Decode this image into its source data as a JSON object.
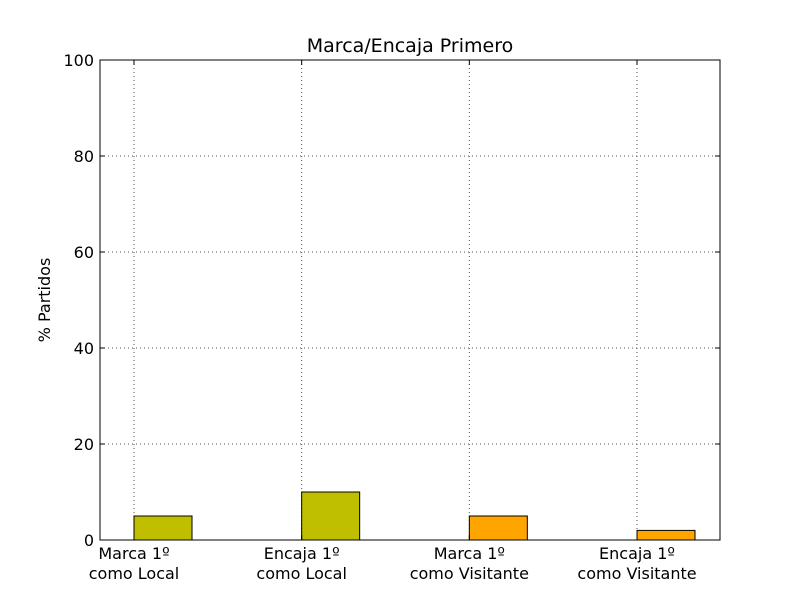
{
  "chart_data": {
    "type": "bar",
    "title": "Marca/Encaja Primero",
    "xlabel": "",
    "ylabel": "% Partidos",
    "ylim": [
      0,
      100
    ],
    "yticks": [
      "0",
      "20",
      "40",
      "60",
      "80",
      "100"
    ],
    "categories": [
      [
        "Marca 1º",
        "como Local"
      ],
      [
        "Encaja 1º",
        "como Local"
      ],
      [
        "Marca 1º",
        "como Visitante"
      ],
      [
        "Encaja 1º",
        "como Visitante"
      ]
    ],
    "values": [
      5,
      10,
      5,
      2
    ],
    "colors": [
      "#bfbf00",
      "#bfbf00",
      "#ffa500",
      "#ffa500"
    ],
    "grid": true,
    "legend": "none"
  }
}
